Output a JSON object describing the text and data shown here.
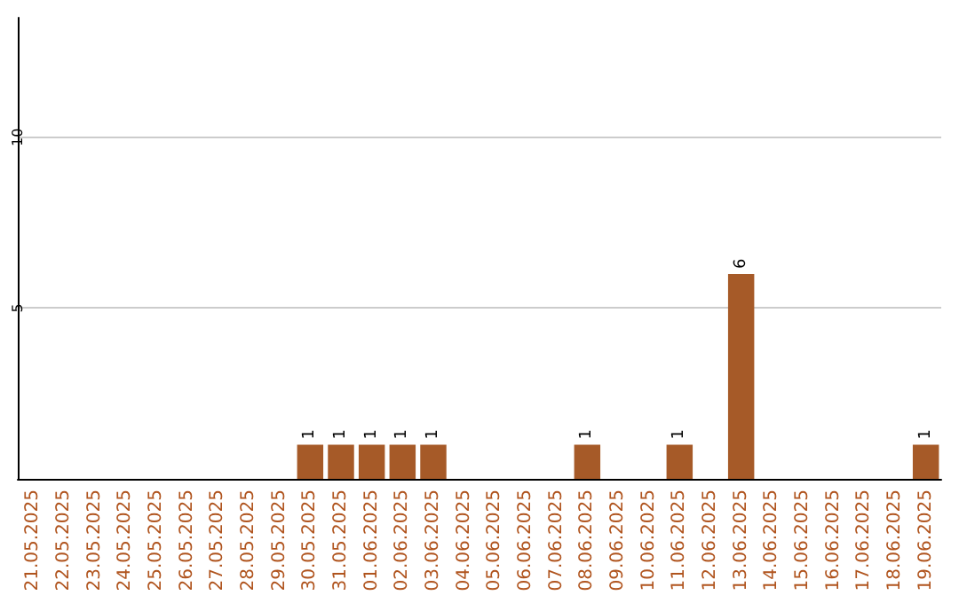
{
  "chart_data": {
    "type": "bar",
    "categories": [
      "21.05.2025",
      "22.05.2025",
      "23.05.2025",
      "24.05.2025",
      "25.05.2025",
      "26.05.2025",
      "27.05.2025",
      "28.05.2025",
      "29.05.2025",
      "30.05.2025",
      "31.05.2025",
      "01.06.2025",
      "02.06.2025",
      "03.06.2025",
      "04.06.2025",
      "05.06.2025",
      "06.06.2025",
      "07.06.2025",
      "08.06.2025",
      "09.06.2025",
      "10.06.2025",
      "11.06.2025",
      "12.06.2025",
      "13.06.2025",
      "14.06.2025",
      "15.06.2025",
      "16.06.2025",
      "17.06.2025",
      "18.06.2025",
      "19.06.2025"
    ],
    "values": [
      0,
      0,
      0,
      0,
      0,
      0,
      0,
      0,
      0,
      1,
      1,
      1,
      1,
      1,
      0,
      0,
      0,
      0,
      1,
      0,
      0,
      1,
      0,
      6,
      0,
      0,
      0,
      0,
      0,
      1
    ],
    "value_labels": [
      null,
      null,
      null,
      null,
      null,
      null,
      null,
      null,
      null,
      "1",
      "1",
      "1",
      "1",
      "1",
      null,
      null,
      null,
      null,
      "1",
      null,
      null,
      "1",
      null,
      "6",
      null,
      null,
      null,
      null,
      null,
      "1"
    ],
    "color": "#a65a28",
    "ylim": [
      0,
      13.5
    ],
    "yticks": [
      5,
      10
    ],
    "grid": "y"
  }
}
